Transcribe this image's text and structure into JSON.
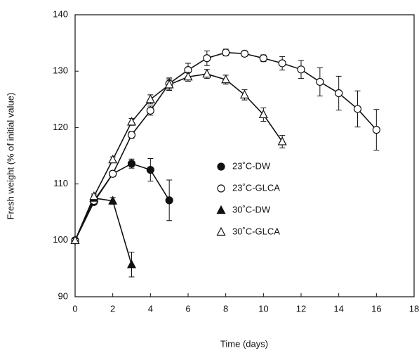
{
  "chart_data": {
    "type": "line",
    "xlabel": "Time (days)",
    "ylabel": "Fresh weight (% of initial value)",
    "x": [
      0,
      1,
      2,
      3,
      4,
      5,
      6,
      7,
      8,
      9,
      10,
      11,
      12,
      13,
      14,
      15,
      16
    ],
    "xlim": [
      0,
      18
    ],
    "xticks": [
      0,
      2,
      4,
      6,
      8,
      10,
      12,
      14,
      16,
      18
    ],
    "ylim": [
      90,
      140
    ],
    "yticks": [
      90,
      100,
      110,
      120,
      130,
      140
    ],
    "legend": "center",
    "series": [
      {
        "name": "23˚C-DW",
        "color": "#111111",
        "marker": "circle",
        "filled": true,
        "values": [
          100,
          106.8,
          111.8,
          113.6,
          112.5,
          107.1,
          null,
          null,
          null,
          null,
          null,
          null,
          null,
          null,
          null,
          null,
          null
        ],
        "errors": [
          0.3,
          0.4,
          0.5,
          0.8,
          2.0,
          3.6,
          null,
          null,
          null,
          null,
          null,
          null,
          null,
          null,
          null,
          null,
          null
        ]
      },
      {
        "name": "23˚C-GLCA",
        "color": "#111111",
        "marker": "circle",
        "filled": false,
        "values": [
          100,
          107,
          111.8,
          118.7,
          123,
          127.8,
          130.2,
          132.3,
          133.3,
          133.1,
          132.3,
          131.4,
          130.3,
          128.1,
          126.1,
          123.3,
          119.6
        ],
        "errors": [
          0.3,
          0.4,
          0.5,
          0.6,
          0.8,
          1.0,
          1.2,
          1.3,
          0.6,
          0.5,
          0.6,
          1.2,
          1.6,
          2.5,
          3.0,
          3.2,
          3.6
        ]
      },
      {
        "name": "30˚C-DW",
        "color": "#111111",
        "marker": "triangle",
        "filled": true,
        "values": [
          100,
          107.5,
          107.0,
          95.7,
          null,
          null,
          null,
          null,
          null,
          null,
          null,
          null,
          null,
          null,
          null,
          null,
          null
        ],
        "errors": [
          0.3,
          0.4,
          0.6,
          2.2,
          null,
          null,
          null,
          null,
          null,
          null,
          null,
          null,
          null,
          null,
          null,
          null,
          null
        ]
      },
      {
        "name": "30˚C-GLCA",
        "color": "#111111",
        "marker": "triangle",
        "filled": false,
        "values": [
          100,
          107.8,
          114.3,
          121,
          125,
          127.6,
          129,
          129.5,
          128.5,
          125.8,
          122.3,
          117.5,
          null,
          null,
          null,
          null,
          null
        ],
        "errors": [
          0.3,
          0.4,
          0.5,
          0.6,
          0.8,
          1.0,
          0.8,
          0.8,
          0.8,
          0.9,
          1.2,
          1.1,
          null,
          null,
          null,
          null,
          null
        ]
      }
    ]
  }
}
